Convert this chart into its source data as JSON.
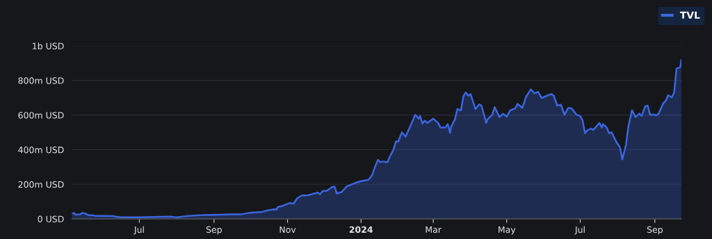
{
  "chart_data": {
    "type": "area",
    "x": [
      "2023-05-06",
      "2023-05-08",
      "2023-05-09",
      "2023-05-13",
      "2023-05-15",
      "2023-05-17",
      "2023-05-20",
      "2023-05-24",
      "2023-05-26",
      "2023-06-10",
      "2023-06-12",
      "2023-06-16",
      "2023-07-01",
      "2023-07-20",
      "2023-07-28",
      "2023-08-01",
      "2023-08-09",
      "2023-08-24",
      "2023-09-01",
      "2023-09-16",
      "2023-09-24",
      "2023-10-01",
      "2023-10-11",
      "2023-10-17",
      "2023-10-21",
      "2023-10-23",
      "2023-10-24",
      "2023-10-28",
      "2023-11-01",
      "2023-11-03",
      "2023-11-06",
      "2023-11-09",
      "2023-11-13",
      "2023-11-18",
      "2023-11-26",
      "2023-11-28",
      "2023-11-30",
      "2023-12-04",
      "2023-12-08",
      "2023-12-10",
      "2023-12-12",
      "2023-12-16",
      "2023-12-20",
      "2023-12-27",
      "2024-01-01",
      "2024-01-07",
      "2024-01-10",
      "2024-01-13",
      "2024-01-15",
      "2024-01-17",
      "2024-01-19",
      "2024-01-23",
      "2024-01-25",
      "2024-01-28",
      "2024-01-30",
      "2024-02-01",
      "2024-02-04",
      "2024-02-07",
      "2024-02-10",
      "2024-02-15",
      "2024-02-18",
      "2024-02-19",
      "2024-02-21",
      "2024-02-23",
      "2024-02-25",
      "2024-03-01",
      "2024-03-05",
      "2024-03-07",
      "2024-03-11",
      "2024-03-13",
      "2024-03-15",
      "2024-03-16",
      "2024-03-19",
      "2024-03-21",
      "2024-03-24",
      "2024-03-26",
      "2024-03-28",
      "2024-03-30",
      "2024-04-01",
      "2024-04-05",
      "2024-04-08",
      "2024-04-10",
      "2024-04-14",
      "2024-04-15",
      "2024-04-19",
      "2024-04-21",
      "2024-04-25",
      "2024-04-28",
      "2024-05-01",
      "2024-05-04",
      "2024-05-08",
      "2024-05-10",
      "2024-05-14",
      "2024-05-17",
      "2024-05-21",
      "2024-05-24",
      "2024-05-27",
      "2024-05-30",
      "2024-06-02",
      "2024-06-07",
      "2024-06-09",
      "2024-06-12",
      "2024-06-15",
      "2024-06-18",
      "2024-06-21",
      "2024-06-24",
      "2024-06-28",
      "2024-07-01",
      "2024-07-03",
      "2024-07-05",
      "2024-07-07",
      "2024-07-10",
      "2024-07-12",
      "2024-07-17",
      "2024-07-19",
      "2024-07-20",
      "2024-07-23",
      "2024-07-25",
      "2024-07-27",
      "2024-07-31",
      "2024-08-03",
      "2024-08-05",
      "2024-08-08",
      "2024-08-10",
      "2024-08-13",
      "2024-08-16",
      "2024-08-19",
      "2024-08-21",
      "2024-08-24",
      "2024-08-26",
      "2024-08-28",
      "2024-08-31",
      "2024-09-02",
      "2024-09-04",
      "2024-09-08",
      "2024-09-10",
      "2024-09-12",
      "2024-09-15",
      "2024-09-17",
      "2024-09-19",
      "2024-09-22",
      "2024-09-23"
    ],
    "series": [
      {
        "name": "TVL",
        "color": "#3b66e0",
        "values": [
          33000000.0,
          33000000.0,
          25000000.0,
          27000000.0,
          35000000.0,
          31000000.0,
          21000000.0,
          20000000.0,
          17000000.0,
          16000000.0,
          12000000.0,
          9000000.0,
          9000000.0,
          12000000.0,
          13000000.0,
          9000000.0,
          16000000.0,
          23000000.0,
          24000000.0,
          27000000.0,
          27000000.0,
          36000000.0,
          41000000.0,
          52000000.0,
          56000000.0,
          55000000.0,
          69000000.0,
          76000000.0,
          87000000.0,
          92000000.0,
          88000000.0,
          119000000.0,
          136000000.0,
          137000000.0,
          152000000.0,
          143000000.0,
          160000000.0,
          164000000.0,
          184000000.0,
          187000000.0,
          147000000.0,
          156000000.0,
          187000000.0,
          207000000.0,
          218000000.0,
          225000000.0,
          250000000.0,
          307000000.0,
          341000000.0,
          328000000.0,
          332000000.0,
          328000000.0,
          361000000.0,
          401000000.0,
          448000000.0,
          448000000.0,
          501000000.0,
          475000000.0,
          521000000.0,
          602000000.0,
          579000000.0,
          595000000.0,
          552000000.0,
          568000000.0,
          555000000.0,
          579000000.0,
          555000000.0,
          528000000.0,
          528000000.0,
          548000000.0,
          497000000.0,
          535000000.0,
          575000000.0,
          635000000.0,
          628000000.0,
          709000000.0,
          731000000.0,
          712000000.0,
          722000000.0,
          635000000.0,
          662000000.0,
          655000000.0,
          555000000.0,
          575000000.0,
          602000000.0,
          646000000.0,
          588000000.0,
          608000000.0,
          592000000.0,
          628000000.0,
          638000000.0,
          665000000.0,
          642000000.0,
          705000000.0,
          749000000.0,
          726000000.0,
          735000000.0,
          699000000.0,
          708000000.0,
          722000000.0,
          712000000.0,
          655000000.0,
          660000000.0,
          602000000.0,
          642000000.0,
          638000000.0,
          602000000.0,
          595000000.0,
          568000000.0,
          495000000.0,
          513000000.0,
          522000000.0,
          515000000.0,
          555000000.0,
          528000000.0,
          548000000.0,
          528000000.0,
          495000000.0,
          501000000.0,
          445000000.0,
          414000000.0,
          344000000.0,
          428000000.0,
          535000000.0,
          628000000.0,
          588000000.0,
          608000000.0,
          595000000.0,
          651000000.0,
          655000000.0,
          602000000.0,
          604000000.0,
          598000000.0,
          608000000.0,
          669000000.0,
          682000000.0,
          715000000.0,
          702000000.0,
          731000000.0,
          869000000.0,
          876000000.0,
          919000000.0
        ]
      }
    ],
    "xlim": [
      "2023-05-06",
      "2024-09-23"
    ],
    "xticks": [
      {
        "value": "2023-07-01",
        "label": "Jul"
      },
      {
        "value": "2023-09-01",
        "label": "Sep"
      },
      {
        "value": "2023-11-01",
        "label": "Nov"
      },
      {
        "value": "2024-01-01",
        "label": "2024"
      },
      {
        "value": "2024-03-01",
        "label": "Mar"
      },
      {
        "value": "2024-05-01",
        "label": "May"
      },
      {
        "value": "2024-07-01",
        "label": "Jul"
      },
      {
        "value": "2024-09-01",
        "label": "Sep"
      }
    ],
    "ylim": [
      0,
      1000000000
    ],
    "yticks": [
      {
        "value": 0,
        "label": "0 USD"
      },
      {
        "value": 200000000,
        "label": "200m USD"
      },
      {
        "value": 400000000,
        "label": "400m USD"
      },
      {
        "value": 600000000,
        "label": "600m USD"
      },
      {
        "value": 800000000,
        "label": "800m USD"
      },
      {
        "value": 1000000000,
        "label": "1b USD"
      }
    ],
    "grid": "y",
    "legend": "top right"
  }
}
